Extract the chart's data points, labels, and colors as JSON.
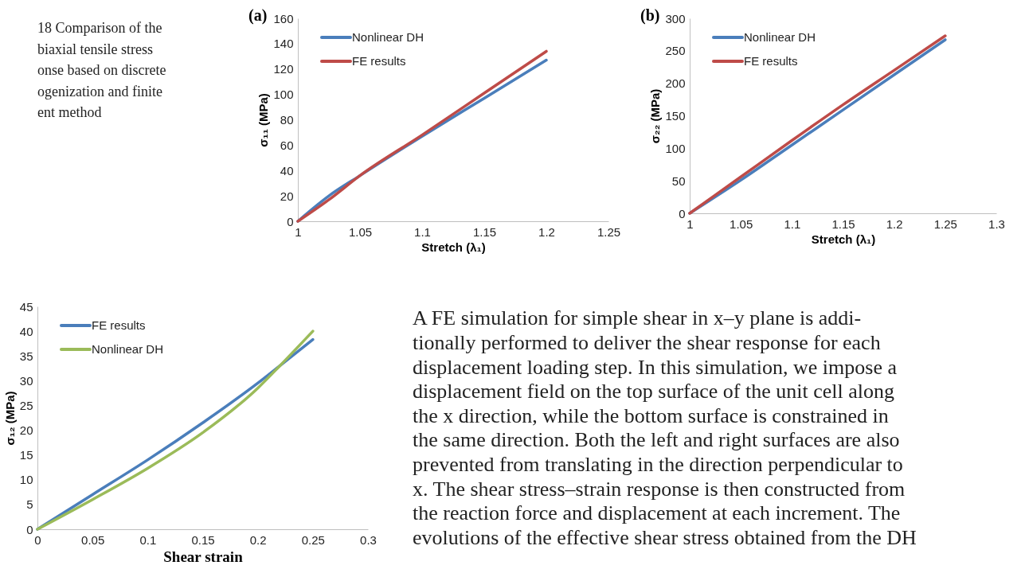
{
  "chart_data": [
    {
      "type": "other",
      "annotations": [
        "18  Comparison of the",
        "biaxial tensile stress",
        "onse based on discrete",
        "ogenization and finite",
        "ent method"
      ]
    },
    {
      "type": "line",
      "title": "(a)",
      "xlabel": "Stretch (λ₁)",
      "ylabel": "σ₁₁ (MPa)",
      "xlim": [
        1,
        1.25
      ],
      "xticks": [
        1,
        1.05,
        1.1,
        1.15,
        1.2,
        1.25
      ],
      "ylim": [
        0,
        160
      ],
      "yticks": [
        0,
        20,
        40,
        60,
        80,
        100,
        120,
        140,
        160
      ],
      "legend": "top left",
      "line_style": "solid",
      "series": [
        {
          "name": "Nonlinear DH",
          "color": "#4a7ebb",
          "x": [
            1,
            1.025,
            1.05,
            1.1,
            1.15,
            1.2
          ],
          "values": [
            0,
            20,
            36,
            67,
            97,
            127
          ]
        },
        {
          "name": "FE results",
          "color": "#be4b48",
          "x": [
            1,
            1.025,
            1.05,
            1.1,
            1.15,
            1.2
          ],
          "values": [
            0,
            17,
            36,
            68,
            101,
            134
          ]
        }
      ]
    },
    {
      "type": "line",
      "title": "(b)",
      "xlabel": "Stretch (λ₁)",
      "ylabel": "σ₂₂ (MPa)",
      "xlim": [
        1,
        1.3
      ],
      "xticks": [
        1,
        1.05,
        1.1,
        1.15,
        1.2,
        1.25,
        1.3
      ],
      "ylim": [
        0,
        300
      ],
      "yticks": [
        0,
        50,
        100,
        150,
        200,
        250,
        300
      ],
      "legend": "top left",
      "line_style": "solid",
      "series": [
        {
          "name": "Nonlinear DH",
          "color": "#4a7ebb",
          "x": [
            1,
            1.05,
            1.1,
            1.15,
            1.2,
            1.25
          ],
          "values": [
            0,
            51,
            105,
            159,
            213,
            267
          ]
        },
        {
          "name": "FE results",
          "color": "#be4b48",
          "x": [
            1,
            1.05,
            1.1,
            1.15,
            1.2,
            1.25
          ],
          "values": [
            0,
            56,
            112,
            167,
            220,
            273
          ]
        }
      ]
    },
    {
      "type": "line",
      "xlabel": "Shear strain",
      "ylabel": "σ₁₂ (MPa)",
      "xlim": [
        0,
        0.3
      ],
      "xticks": [
        0,
        0.05,
        0.1,
        0.15,
        0.2,
        0.25,
        0.3
      ],
      "ylim": [
        0,
        45
      ],
      "yticks": [
        0,
        5,
        10,
        15,
        20,
        25,
        30,
        35,
        40,
        45
      ],
      "legend": "top left",
      "line_style": "solid",
      "series": [
        {
          "name": "FE results",
          "color": "#4a7ebb",
          "x": [
            0,
            0.05,
            0.1,
            0.15,
            0.2,
            0.22,
            0.25
          ],
          "values": [
            0,
            7,
            14,
            21.5,
            29.5,
            33,
            38.3
          ]
        },
        {
          "name": "Nonlinear DH",
          "color": "#9bbb59",
          "x": [
            0,
            0.05,
            0.1,
            0.15,
            0.2,
            0.22,
            0.25
          ],
          "values": [
            0,
            6,
            12.3,
            19.5,
            28.5,
            33,
            40
          ]
        }
      ]
    },
    {
      "type": "other",
      "annotations": [
        "A FE simulation for simple shear in x–y plane is addi-",
        "tionally performed to deliver the shear response for each",
        "displacement loading step. In this simulation, we impose a",
        "displacement field on the top surface of the unit cell along",
        "the x direction, while the bottom surface is constrained in",
        "the same direction. Both the left and right surfaces are also",
        "prevented from translating in the direction perpendicular to",
        "x. The shear stress–strain response is then constructed from",
        "the reaction force and displacement at each increment. The",
        "evolutions of the effective shear stress obtained from the DH"
      ]
    }
  ]
}
